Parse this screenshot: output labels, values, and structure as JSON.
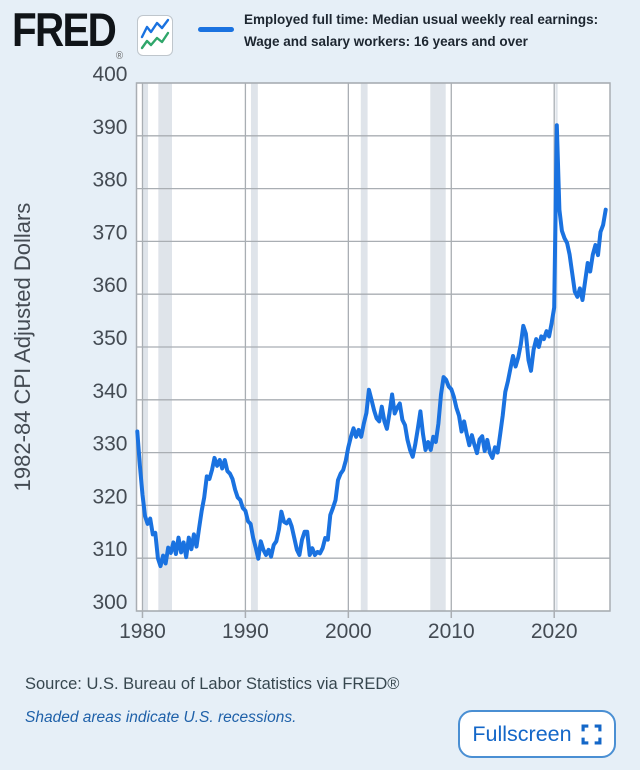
{
  "header": {
    "logo_text": "FRED",
    "registered_mark": "®",
    "legend_line1": "Employed full time: Median usual weekly real earnings:",
    "legend_line2": "Wage and salary workers: 16 years and over"
  },
  "footer": {
    "source_text": "Source: U.S. Bureau of Labor Statistics via FRED®",
    "recession_note": "Shaded areas indicate U.S. recessions.",
    "fullscreen_label": "Fullscreen"
  },
  "colors": {
    "background": "#e6eff7",
    "plot_background": "#ffffff",
    "grid": "#a9aeb3",
    "recession_band": "#dfe4ea",
    "line": "#1a72e0",
    "icon_green": "#2fa66a",
    "axis_text": "#444b53",
    "legend_text": "#1d2630",
    "source_text": "#37474f",
    "note_blue": "#1f61a9",
    "button_blue": "#1467c8",
    "button_border": "#4a8fd3",
    "logo_black": "#101418"
  },
  "chart_data": {
    "type": "line",
    "title": "Employed full time: Median usual weekly real earnings: Wage and salary workers: 16 years and over",
    "ylabel": "1982-84 CPI Adjusted Dollars",
    "xlabel": "",
    "legend_position": "top",
    "grid": true,
    "xlim": [
      1979.42,
      2025.42
    ],
    "ylim": [
      300,
      400
    ],
    "x_ticks": [
      1980,
      1990,
      2000,
      2010,
      2020
    ],
    "y_ticks": [
      300,
      310,
      320,
      330,
      340,
      350,
      360,
      370,
      380,
      390,
      400
    ],
    "frequency": "quarterly",
    "x_start": 1979.5,
    "x_step": 0.25,
    "recessions": [
      [
        1980.04,
        1980.54
      ],
      [
        1981.54,
        1982.87
      ],
      [
        1990.54,
        1991.21
      ],
      [
        2001.21,
        2001.87
      ],
      [
        2007.96,
        2009.46
      ],
      [
        2020.12,
        2020.29
      ]
    ],
    "series": [
      {
        "name": "Employed full time: Median usual weekly real earnings: Wage and salary workers: 16 years and over",
        "values": [
          334.0,
          327.5,
          322.0,
          318.0,
          316.5,
          317.5,
          314.5,
          314.8,
          310.0,
          308.5,
          310.5,
          309.0,
          312.0,
          311.0,
          313.0,
          310.8,
          313.9,
          311.1,
          313.0,
          310.2,
          313.9,
          311.7,
          314.5,
          312.2,
          315.7,
          319.0,
          321.5,
          325.5,
          325.0,
          326.7,
          329.0,
          327.5,
          328.6,
          327.0,
          328.6,
          326.5,
          326.0,
          325.0,
          323.0,
          321.5,
          321.0,
          319.5,
          319.0,
          317.0,
          316.5,
          313.9,
          312.0,
          309.9,
          313.2,
          311.6,
          310.6,
          311.6,
          310.3,
          312.5,
          313.2,
          315.4,
          318.8,
          316.9,
          316.6,
          317.3,
          316.0,
          313.8,
          311.6,
          310.6,
          313.5,
          315.0,
          315.0,
          310.6,
          311.9,
          310.6,
          311.2,
          310.9,
          311.9,
          313.8,
          313.5,
          318.2,
          319.5,
          321.0,
          324.8,
          326.0,
          326.7,
          328.5,
          331.0,
          333.0,
          334.6,
          333.0,
          334.3,
          333.0,
          335.5,
          337.5,
          341.9,
          340.0,
          338.0,
          336.5,
          335.9,
          338.7,
          335.9,
          334.5,
          337.5,
          341.0,
          337.4,
          338.5,
          339.3,
          336.2,
          335.2,
          332.4,
          330.5,
          329.2,
          331.5,
          334.5,
          337.8,
          333.5,
          330.5,
          332.0,
          330.5,
          333.0,
          332.0,
          335.5,
          341.0,
          344.3,
          343.8,
          342.5,
          342.0,
          340.6,
          338.5,
          337.0,
          334.0,
          335.9,
          333.5,
          331.4,
          333.3,
          331.5,
          329.9,
          332.5,
          333.1,
          330.3,
          332.4,
          330.0,
          329.0,
          331.0,
          330.0,
          333.5,
          337.0,
          341.5,
          343.5,
          346.0,
          348.3,
          346.3,
          348.0,
          350.5,
          354.0,
          352.5,
          347.5,
          345.5,
          349.5,
          351.5,
          350.0,
          352.0,
          351.5,
          353.0,
          352.0,
          354.5,
          357.5,
          392.0,
          376.0,
          372.0,
          370.6,
          369.7,
          367.5,
          364.0,
          360.5,
          359.5,
          361.1,
          358.9,
          362.4,
          365.9,
          364.3,
          367.5,
          369.3,
          367.4,
          371.8,
          373.1,
          376.0
        ]
      }
    ]
  }
}
